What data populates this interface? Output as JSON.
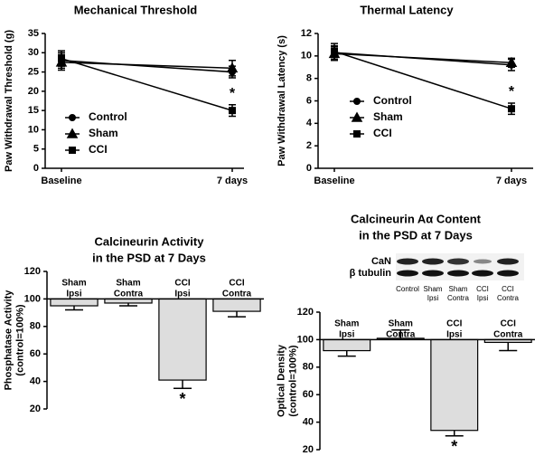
{
  "chart_data": [
    {
      "type": "line",
      "title": [
        "Mechanical Threshold"
      ],
      "ylabel": [
        "Paw Withdrawal Threshold (g)"
      ],
      "categories": [
        "Baseline",
        "7 days"
      ],
      "ylim": [
        0,
        35
      ],
      "yticks": [
        0,
        5,
        10,
        15,
        20,
        25,
        30,
        35
      ],
      "legend": "center left",
      "series": [
        {
          "name": "Control",
          "color": "#000000",
          "marker": "circle",
          "values": [
            28,
            25
          ],
          "errors": [
            2,
            1.5
          ]
        },
        {
          "name": "Sham",
          "color": "#000000",
          "marker": "triangle",
          "values": [
            27.5,
            26
          ],
          "errors": [
            2,
            2
          ]
        },
        {
          "name": "CCI",
          "color": "#000000",
          "marker": "square",
          "values": [
            28.5,
            15
          ],
          "errors": [
            2,
            1.5
          ],
          "annotations": [
            null,
            "*"
          ]
        }
      ]
    },
    {
      "type": "line",
      "title": [
        "Thermal Latency"
      ],
      "ylabel": [
        "Paw Withdrawal Latency (s)"
      ],
      "categories": [
        "Baseline",
        "7 days"
      ],
      "ylim": [
        0,
        12
      ],
      "yticks": [
        0,
        2,
        4,
        6,
        8,
        10,
        12
      ],
      "legend": "center left",
      "series": [
        {
          "name": "Control",
          "color": "#000000",
          "marker": "circle",
          "values": [
            10.3,
            9.2
          ],
          "errors": [
            0.6,
            0.5
          ]
        },
        {
          "name": "Sham",
          "color": "#000000",
          "marker": "triangle",
          "values": [
            10.2,
            9.4
          ],
          "errors": [
            0.6,
            0.4
          ]
        },
        {
          "name": "CCI",
          "color": "#000000",
          "marker": "square",
          "values": [
            10.4,
            5.3
          ],
          "errors": [
            0.7,
            0.5
          ],
          "annotations": [
            null,
            "*"
          ]
        }
      ]
    },
    {
      "type": "bar",
      "title": [
        "Calcineurin Activity",
        "in the PSD at 7 Days"
      ],
      "ylabel": [
        "Phosphatase Activity",
        "(control=100%)"
      ],
      "categories": [
        [
          "Sham",
          "Ipsi"
        ],
        [
          "Sham",
          "Contra"
        ],
        [
          "CCI",
          "Ipsi"
        ],
        [
          "CCI",
          "Contra"
        ]
      ],
      "values": [
        95,
        97,
        41,
        91
      ],
      "errors": [
        3,
        2,
        6,
        4
      ],
      "value_annotations": [
        null,
        null,
        "*",
        null
      ],
      "baseline": 100,
      "color": "#dddddd",
      "ylim": [
        20,
        120
      ],
      "yticks": [
        20,
        40,
        60,
        80,
        100,
        120
      ]
    },
    {
      "type": "bar",
      "title": [
        "Calcineurin Aα Content",
        "in the PSD at 7 Days"
      ],
      "ylabel": [
        "Optical Density",
        "(control=100%)"
      ],
      "categories": [
        [
          "Sham",
          "Ipsi"
        ],
        [
          "Sham",
          "Contra"
        ],
        [
          "CCI",
          "Ipsi"
        ],
        [
          "CCI",
          "Contra"
        ]
      ],
      "values": [
        92,
        101,
        34,
        98
      ],
      "errors": [
        4,
        6,
        4,
        6
      ],
      "value_annotations": [
        null,
        null,
        "*",
        null
      ],
      "baseline": 100,
      "color": "#dddddd",
      "ylim": [
        20,
        120
      ],
      "yticks": [
        20,
        40,
        60,
        80,
        100,
        120
      ],
      "blot": {
        "rows": [
          "CaN",
          "β tubulin"
        ],
        "lanes": [
          [
            "Control"
          ],
          [
            "Sham",
            "Ipsi"
          ],
          [
            "Sham",
            "Contra"
          ],
          [
            "CCI",
            "Ipsi"
          ],
          [
            "CCI",
            "Contra"
          ]
        ]
      }
    }
  ]
}
